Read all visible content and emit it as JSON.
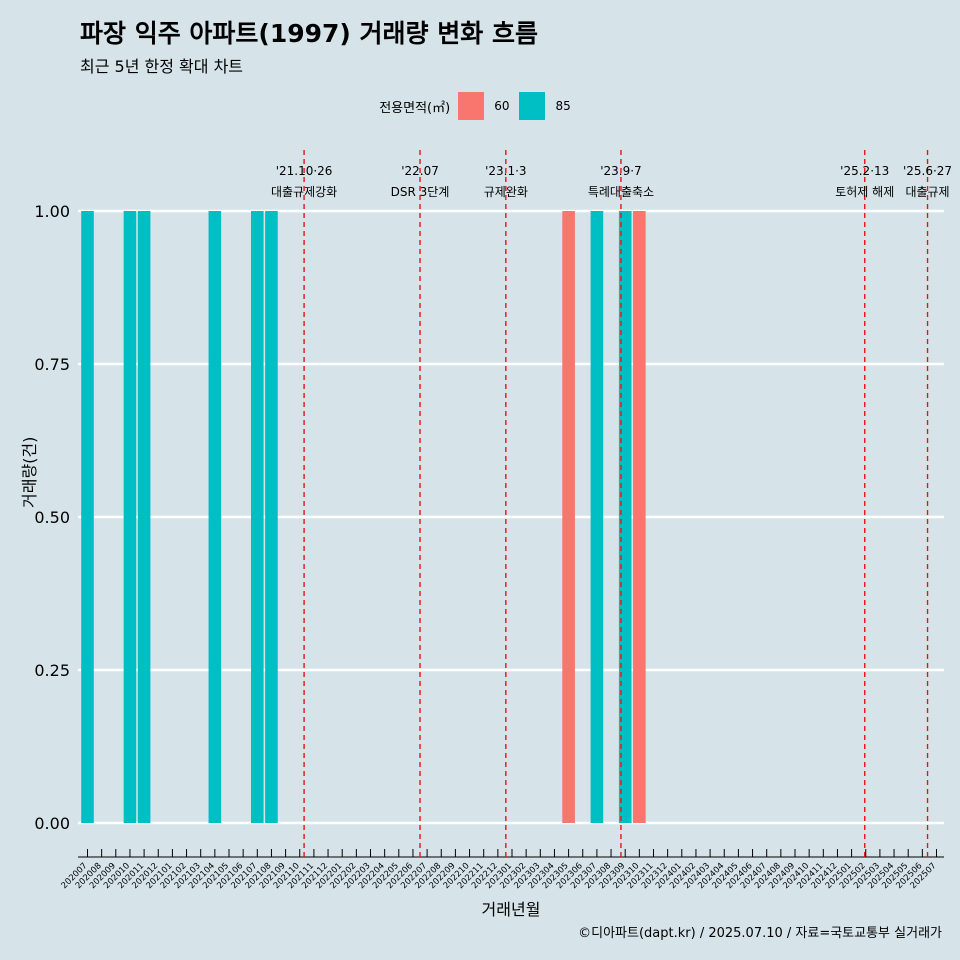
{
  "title": "파장 익주 아파트(1997) 거래량 변화 흐름",
  "subtitle": "최근 5년 한정 확대 차트",
  "caption": "©디아파트(dapt.kr) / 2025.07.10 / 자료=국토교통부 실거래가",
  "legend": {
    "title": "전용면적(㎡)",
    "items": [
      {
        "label": "60",
        "color": "#f8766d"
      },
      {
        "label": "85",
        "color": "#00bfc4"
      }
    ]
  },
  "chart_data": {
    "type": "bar",
    "title": "파장 익주 아파트(1997) 거래량 변화 흐름",
    "subtitle": "최근 5년 한정 확대 차트",
    "xlabel": "거래년월",
    "ylabel": "거래량(건)",
    "ylim": [
      0,
      1
    ],
    "yticks": [
      "0.00",
      "0.25",
      "0.50",
      "0.75",
      "1.00"
    ],
    "categories": [
      "202007",
      "202008",
      "202009",
      "202010",
      "202011",
      "202012",
      "202101",
      "202102",
      "202103",
      "202104",
      "202105",
      "202106",
      "202107",
      "202108",
      "202109",
      "202110",
      "202111",
      "202112",
      "202201",
      "202202",
      "202203",
      "202204",
      "202205",
      "202206",
      "202207",
      "202208",
      "202209",
      "202210",
      "202211",
      "202212",
      "202301",
      "202302",
      "202303",
      "202304",
      "202305",
      "202306",
      "202307",
      "202308",
      "202309",
      "202310",
      "202311",
      "202312",
      "202401",
      "202402",
      "202403",
      "202404",
      "202405",
      "202406",
      "202407",
      "202408",
      "202409",
      "202410",
      "202411",
      "202412",
      "202501",
      "202502",
      "202503",
      "202504",
      "202505",
      "202506",
      "202507"
    ],
    "series": [
      {
        "name": "60",
        "color": "#f8766d",
        "points": [
          {
            "x": "202305",
            "y": 1
          },
          {
            "x": "202310",
            "y": 1
          }
        ]
      },
      {
        "name": "85",
        "color": "#00bfc4",
        "points": [
          {
            "x": "202007",
            "y": 1
          },
          {
            "x": "202010",
            "y": 1
          },
          {
            "x": "202011",
            "y": 1
          },
          {
            "x": "202104",
            "y": 1
          },
          {
            "x": "202107",
            "y": 1
          },
          {
            "x": "202108",
            "y": 1
          },
          {
            "x": "202307",
            "y": 1
          },
          {
            "x": "202309",
            "y": 1
          }
        ]
      }
    ],
    "events": [
      {
        "date": "2021-10-26",
        "line1": "'21.10·26",
        "line2": "대출규제강화"
      },
      {
        "date": "2022-07-01",
        "line1": "'22.07",
        "line2": "DSR 3단계"
      },
      {
        "date": "2023-01-03",
        "line1": "'23.1·3",
        "line2": "규제완화"
      },
      {
        "date": "2023-09-07",
        "line1": "'23.9·7",
        "line2": "특례대출축소"
      },
      {
        "date": "2025-02-13",
        "line1": "'25.2·13",
        "line2": "토허제 해제"
      },
      {
        "date": "2025-06-27",
        "line1": "'25.6·27",
        "line2": "대출규제"
      }
    ]
  }
}
